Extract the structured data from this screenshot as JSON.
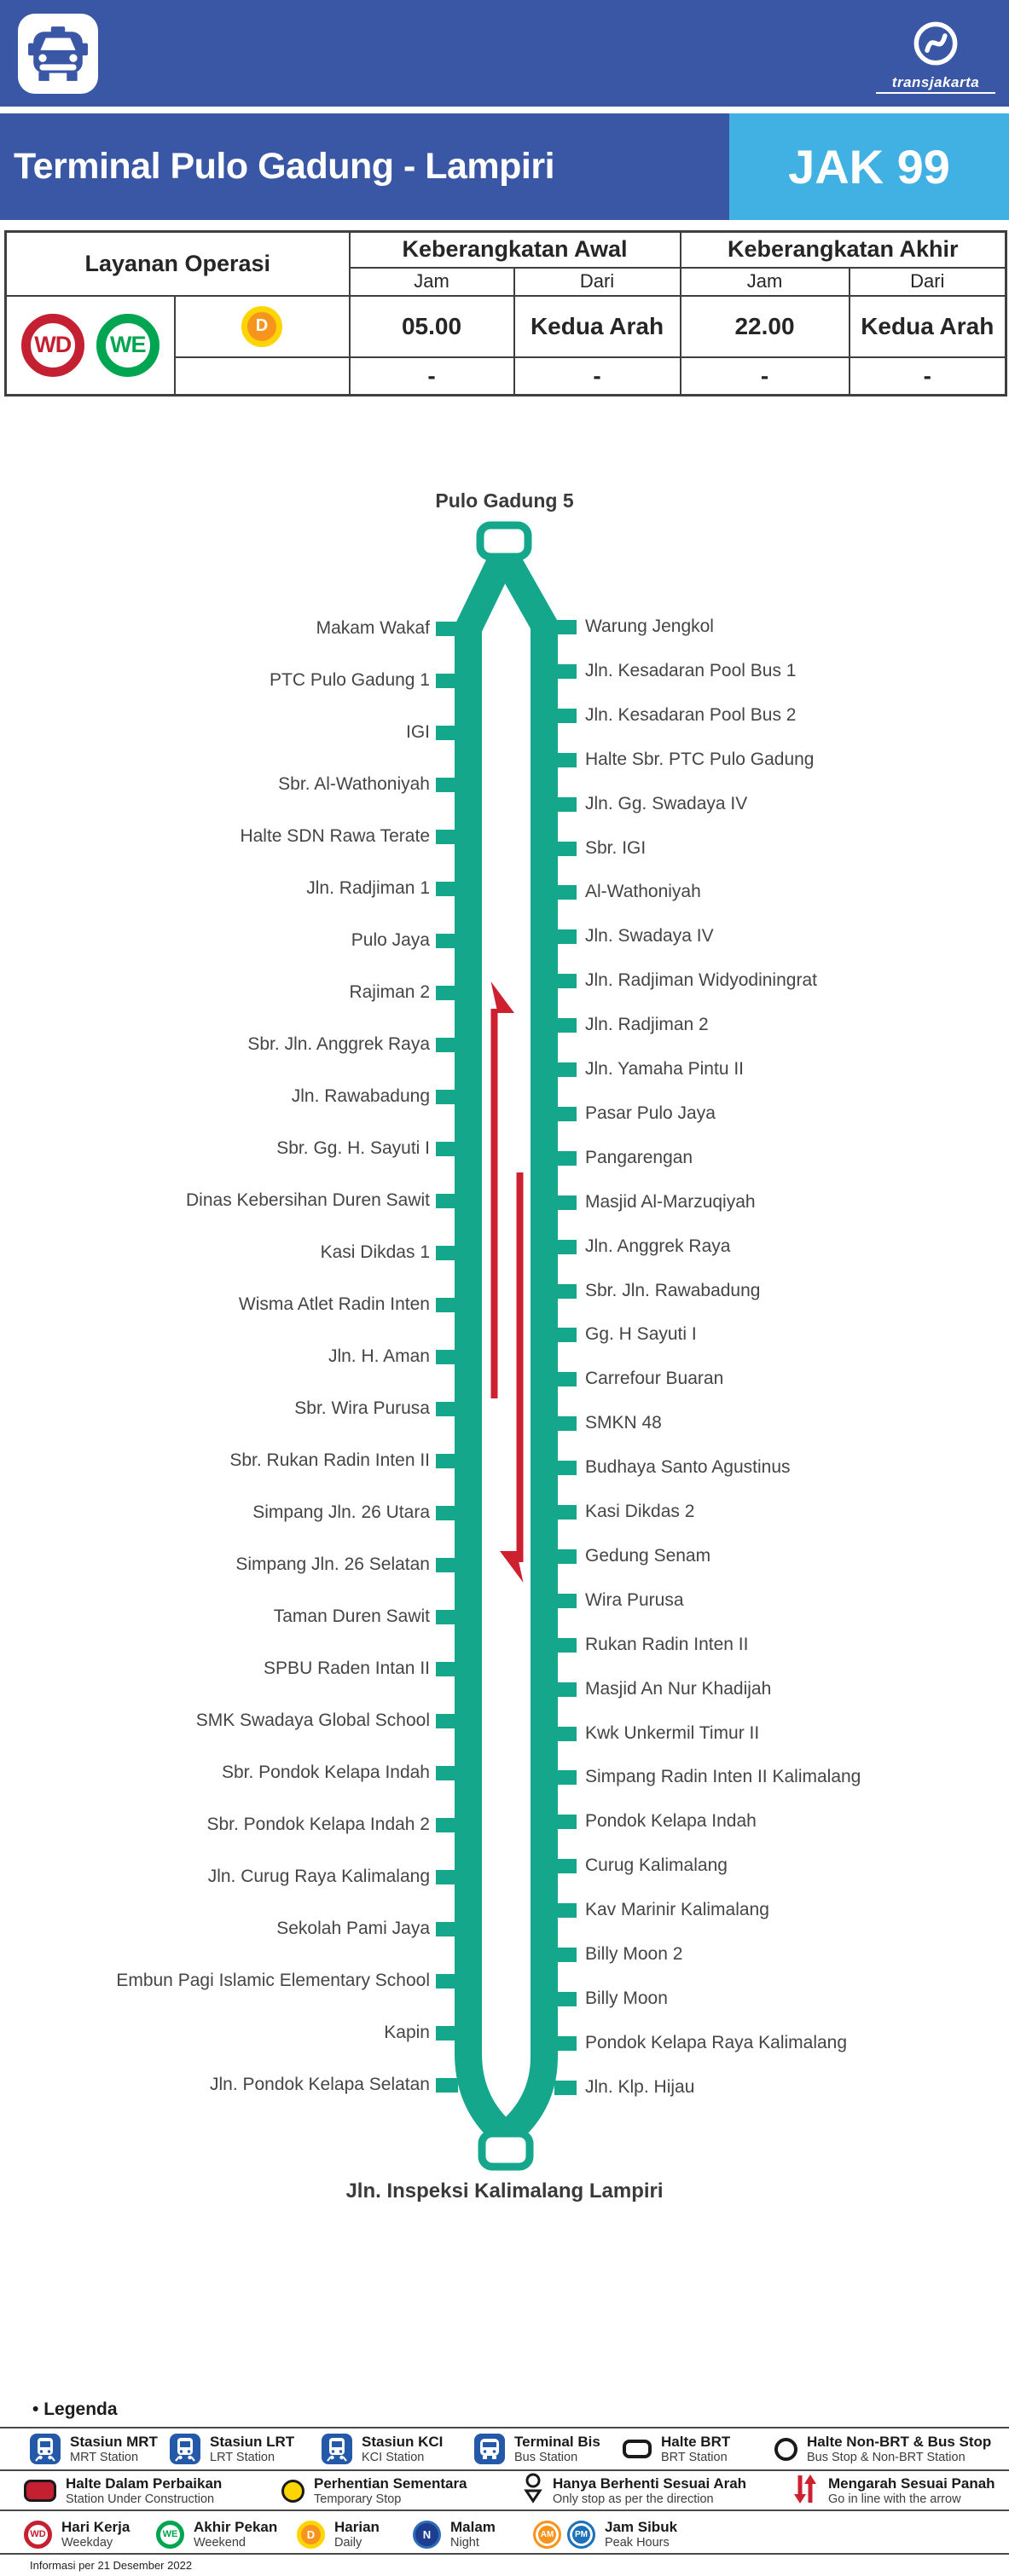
{
  "header": {
    "brand": "transjakarta",
    "title": "Terminal Pulo Gadung - Lampiri",
    "code": "JAK 99"
  },
  "table": {
    "layanan": "Layanan Operasi",
    "awal": "Keberangkatan Awal",
    "akhir": "Keberangkatan Akhir",
    "jam": "Jam",
    "dari": "Dari",
    "badges": [
      "WD",
      "WE"
    ],
    "service": "D",
    "rows": [
      {
        "cells": [
          "05.00",
          "Kedua Arah",
          "22.00",
          "Kedua Arah"
        ]
      },
      {
        "cells": [
          "-",
          "-",
          "-",
          "-"
        ]
      }
    ]
  },
  "route": {
    "start": "Pulo Gadung 5",
    "end": "Jln. Inspeksi Kalimalang Lampiri",
    "left_stops": [
      "Makam Wakaf",
      "PTC Pulo Gadung 1",
      "IGI",
      "Sbr. Al-Wathoniyah",
      "Halte SDN Rawa Terate",
      "Jln. Radjiman 1",
      "Pulo Jaya",
      "Rajiman 2",
      "Sbr. Jln. Anggrek Raya",
      "Jln. Rawabadung",
      "Sbr. Gg. H. Sayuti I",
      "Dinas Kebersihan Duren Sawit",
      "Kasi Dikdas 1",
      "Wisma Atlet Radin Inten",
      "Jln. H. Aman",
      "Sbr. Wira Purusa",
      "Sbr. Rukan Radin Inten II",
      "Simpang Jln. 26 Utara",
      "Simpang Jln. 26 Selatan",
      "Taman Duren Sawit",
      "SPBU Raden Intan II",
      "SMK Swadaya Global School",
      "Sbr. Pondok Kelapa Indah",
      "Sbr. Pondok Kelapa Indah 2",
      "Jln. Curug Raya Kalimalang",
      "Sekolah Pami Jaya",
      "Embun Pagi Islamic Elementary School",
      "Kapin",
      "Jln. Pondok Kelapa Selatan"
    ],
    "right_stops": [
      "Warung Jengkol",
      "Jln. Kesadaran Pool Bus 1",
      "Jln. Kesadaran Pool Bus 2",
      "Halte Sbr. PTC Pulo Gadung",
      "Jln. Gg. Swadaya IV",
      "Sbr. IGI",
      "Al-Wathoniyah",
      "Jln. Swadaya IV",
      "Jln. Radjiman Widyodiningrat",
      "Jln. Radjiman 2",
      "Jln. Yamaha Pintu II",
      "Pasar Pulo Jaya",
      "Pangarengan",
      "Masjid Al-Marzuqiyah",
      "Jln. Anggrek Raya",
      "Sbr. Jln. Rawabadung",
      "Gg. H Sayuti I",
      "Carrefour Buaran",
      "SMKN 48",
      "Budhaya Santo Agustinus",
      "Kasi Dikdas 2",
      "Gedung Senam",
      "Wira Purusa",
      "Rukan Radin Inten II",
      "Masjid An Nur Khadijah",
      "Kwk Unkermil Timur II",
      "Simpang Radin Inten II Kalimalang",
      "Pondok Kelapa Indah",
      "Curug Kalimalang",
      "Kav Marinir Kalimalang",
      "Billy Moon 2",
      "Billy Moon",
      "Pondok Kelapa Raya Kalimalang",
      "Jln. Klp. Hijau"
    ]
  },
  "legend": {
    "heading": "Legenda",
    "bullet": "•",
    "row1": [
      {
        "icon": "mrt-station-icon",
        "id": "Stasiun MRT",
        "en": "MRT Station"
      },
      {
        "icon": "lrt-station-icon",
        "id": "Stasiun LRT",
        "en": "LRT Station"
      },
      {
        "icon": "kci-station-icon",
        "id": "Stasiun KCI",
        "en": "KCI Station"
      },
      {
        "icon": "bus-terminal-icon",
        "id": "Terminal Bis",
        "en": "Bus Station"
      },
      {
        "icon": "brt-station-icon",
        "id": "Halte BRT",
        "en": "BRT Station"
      },
      {
        "icon": "non-brt-stop-icon",
        "id": "Halte Non-BRT & Bus Stop",
        "en": "Bus Stop & Non-BRT Station"
      }
    ],
    "row2": [
      {
        "icon": "under-construction-icon",
        "id": "Halte Dalam Perbaikan",
        "en": "Station Under Construction"
      },
      {
        "icon": "temporary-stop-icon",
        "id": "Perhentian Sementara",
        "en": "Temporary Stop"
      },
      {
        "icon": "directional-stop-icon",
        "id": "Hanya Berhenti Sesuai Arah",
        "en": "Only stop as per the direction"
      },
      {
        "icon": "arrow-direction-icon",
        "id": "Mengarah Sesuai Panah",
        "en": "Go in line with the arrow"
      }
    ],
    "row3": [
      {
        "badge": "WD",
        "id": "Hari Kerja",
        "en": "Weekday"
      },
      {
        "badge": "WE",
        "id": "Akhir Pekan",
        "en": "Weekend"
      },
      {
        "badge": "D",
        "id": "Harian",
        "en": "Daily"
      },
      {
        "badge": "N",
        "id": "Malam",
        "en": "Night"
      },
      {
        "badge": "AM/PM",
        "id": "Jam Sibuk",
        "en": "Peak Hours"
      }
    ]
  },
  "footer": "Informasi per 21 Desember 2022",
  "colors": {
    "header_blue": "#3A57A5",
    "accent_light_blue": "#41B1E3",
    "route_teal": "#14A78C",
    "arrow_red": "#CD2130",
    "badge_red": "#C52032",
    "badge_green": "#00A551",
    "badge_yellow": "#FFD403",
    "badge_orange": "#F7941E",
    "badge_navy": "#1D3D91",
    "badge_blue": "#1D71B8",
    "icon_blue": "#2458A8"
  }
}
